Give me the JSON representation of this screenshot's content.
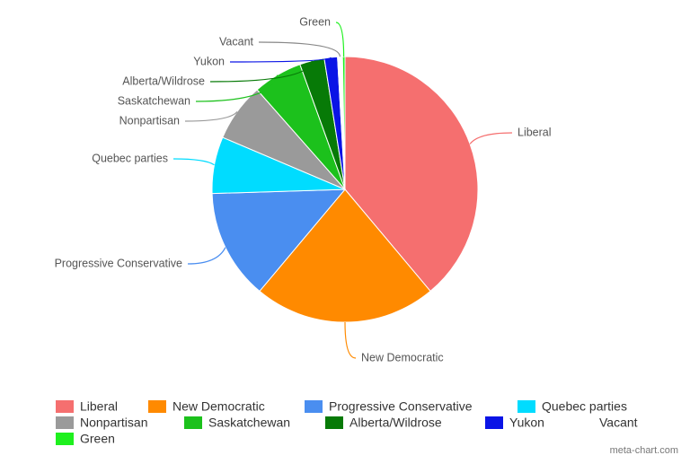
{
  "chart_data": {
    "type": "pie",
    "categories": [
      "Liberal",
      "New Democratic",
      "Progressive Conservative",
      "Quebec parties",
      "Nonpartisan",
      "Saskatchewan",
      "Alberta/Wildrose",
      "Yukon",
      "Vacant",
      "Green"
    ],
    "values": [
      38.9,
      22.2,
      13.4,
      6.9,
      7.1,
      6.0,
      3.0,
      1.6,
      0.6,
      0.3
    ],
    "colors": [
      "#f56f6f",
      "#ff8a00",
      "#4a8ef0",
      "#00dcff",
      "#9a9a9a",
      "#1cc11c",
      "#077a07",
      "#0a14e6",
      "#ffffff",
      "#1ef01e"
    ],
    "credit": "meta-chart.com"
  }
}
